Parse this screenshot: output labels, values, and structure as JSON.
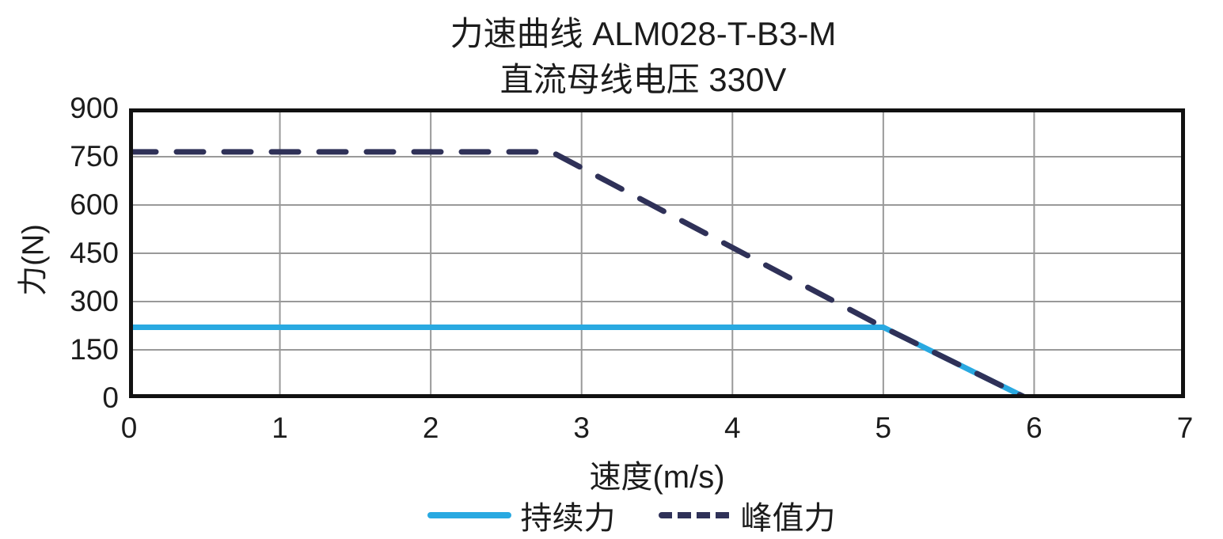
{
  "chart": {
    "title": "力速曲线 ALM028-T-B3-M",
    "subtitle": "直流母线电压 330V",
    "xlabel": "速度(m/s)",
    "ylabel": "力(N)",
    "legend": [
      {
        "label": "持续力",
        "style": "solid",
        "color": "#29a9e1"
      },
      {
        "label": "峰值力",
        "style": "dashed",
        "color": "#2f3158"
      }
    ]
  },
  "chart_data": {
    "type": "line",
    "title": "力速曲线 ALM028-T-B3-M",
    "subtitle": "直流母线电压 330V",
    "xlabel": "速度(m/s)",
    "ylabel": "力(N)",
    "xlim": [
      0,
      7
    ],
    "ylim": [
      0,
      900
    ],
    "xticks": [
      0,
      1,
      2,
      3,
      4,
      5,
      6,
      7
    ],
    "yticks": [
      0,
      150,
      300,
      450,
      600,
      750,
      900
    ],
    "grid": true,
    "legend_position": "bottom",
    "series": [
      {
        "name": "持续力",
        "style": "solid",
        "color": "#29a9e1",
        "width": 7,
        "points": [
          [
            0,
            220
          ],
          [
            5,
            220
          ],
          [
            5.95,
            0
          ]
        ]
      },
      {
        "name": "峰值力",
        "style": "dashed",
        "color": "#2f3158",
        "width": 7,
        "dash": [
          34,
          26
        ],
        "points": [
          [
            0,
            765
          ],
          [
            2.8,
            765
          ],
          [
            5,
            220
          ],
          [
            5.95,
            0
          ]
        ]
      }
    ]
  },
  "colors": {
    "grid": "#999999",
    "axis_border": "#111111",
    "text": "#1c1c1c"
  }
}
